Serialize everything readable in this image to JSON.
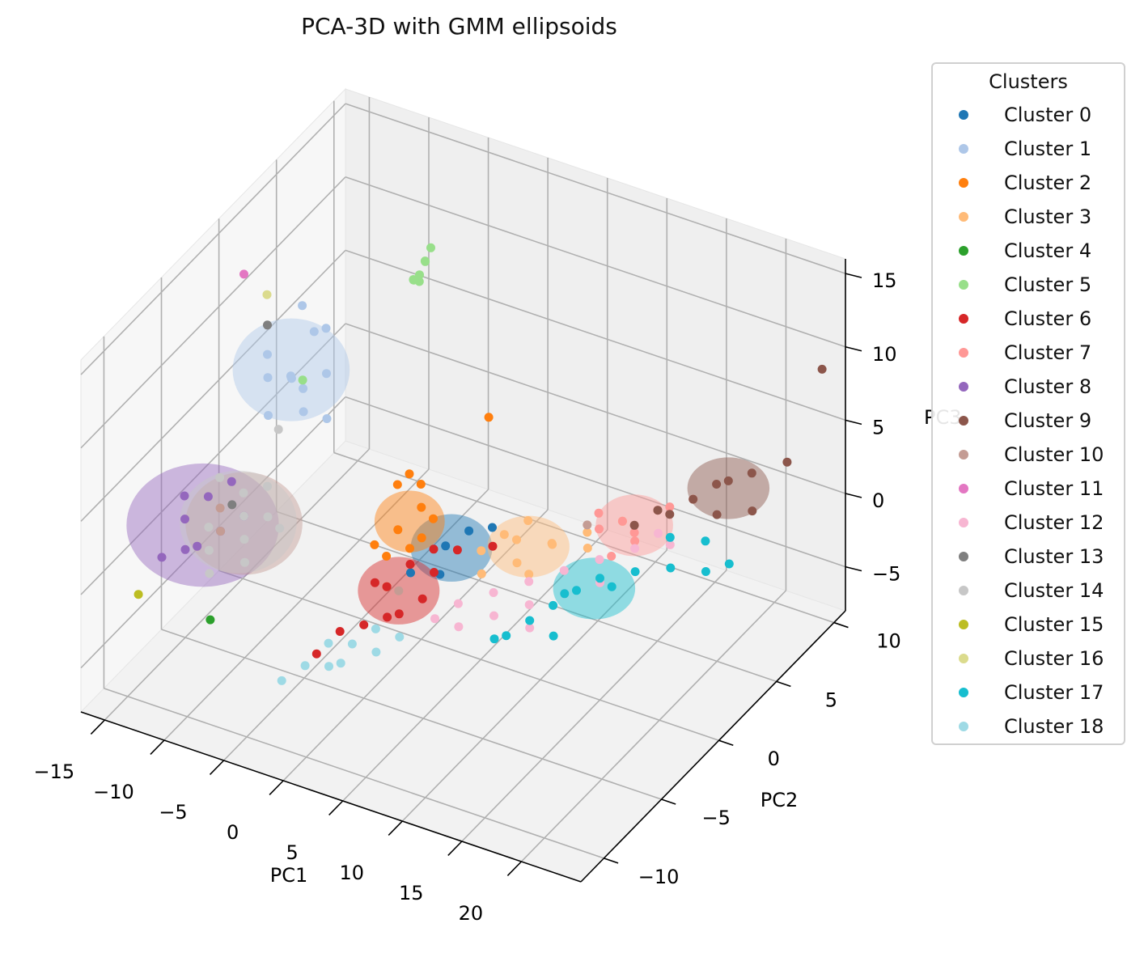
{
  "chart_data": {
    "type": "scatter",
    "projection": "3d",
    "title": "PCA-3D with GMM ellipsoids",
    "xlabel": "PC1",
    "ylabel": "PC2",
    "zlabel": "PC3",
    "xlim": [
      -17,
      25
    ],
    "ylim": [
      -12,
      11
    ],
    "zlim": [
      -8,
      16
    ],
    "xticks": [
      -15,
      -10,
      -5,
      0,
      5,
      10,
      15,
      20
    ],
    "yticks": [
      -10,
      -5,
      0,
      5,
      10
    ],
    "zticks": [
      -5,
      0,
      5,
      10,
      15
    ],
    "xtick_labels": [
      "−15",
      "−10",
      "−5",
      "0",
      "5",
      "10",
      "15",
      "20"
    ],
    "ytick_labels": [
      "−10",
      "−5",
      "0",
      "5",
      "10"
    ],
    "ztick_labels": [
      "−5",
      "0",
      "5",
      "10",
      "15"
    ],
    "grid": true,
    "legend": {
      "title": "Clusters",
      "placement": "outside-right"
    },
    "series": [
      {
        "name": "Cluster 0",
        "color": "#1f77b4",
        "points": [
          [
            3,
            -1,
            0
          ],
          [
            4,
            0,
            0.5
          ],
          [
            2,
            -3,
            -0.5
          ],
          [
            5,
            1,
            0.2
          ],
          [
            3.5,
            -2,
            -1
          ]
        ],
        "ellipsoid": {
          "center": [
            3.5,
            -1,
            0
          ],
          "radii": [
            1.5,
            2,
            1.5
          ]
        }
      },
      {
        "name": "Cluster 1",
        "color": "#aec7e8",
        "points": [
          [
            -9,
            -2,
            9
          ],
          [
            -8,
            -3,
            10
          ],
          [
            -10,
            -1,
            8
          ],
          [
            -9,
            0,
            10.5
          ],
          [
            -8,
            -2,
            8.5
          ],
          [
            -10,
            -3,
            9.5
          ],
          [
            -7,
            -1,
            9
          ],
          [
            -9,
            -4,
            8
          ],
          [
            -11,
            -2,
            10
          ],
          [
            -8,
            0,
            11
          ],
          [
            -6,
            -2,
            7
          ],
          [
            -10,
            0,
            12
          ],
          [
            -7,
            -3,
            8
          ]
        ],
        "ellipsoid": {
          "center": [
            -9,
            -2,
            9.5
          ],
          "radii": [
            2.5,
            2.5,
            2.5
          ]
        }
      },
      {
        "name": "Cluster 2",
        "color": "#ff7f0e",
        "points": [
          [
            -1,
            -1,
            0
          ],
          [
            0,
            0,
            1
          ],
          [
            -2,
            -2,
            -0.5
          ],
          [
            0,
            -1,
            -1
          ],
          [
            1,
            0,
            0.5
          ],
          [
            -1,
            1,
            1.5
          ],
          [
            0,
            -3,
            -2
          ],
          [
            -2,
            0,
            2
          ],
          [
            -1,
            -2,
            -1
          ],
          [
            1,
            -1,
            0
          ],
          [
            -4,
            10,
            -2
          ],
          [
            -1,
            0,
            3
          ]
        ],
        "ellipsoid": {
          "center": [
            -0.5,
            -0.5,
            0.3
          ],
          "radii": [
            1.5,
            1.5,
            1.5
          ]
        }
      },
      {
        "name": "Cluster 3",
        "color": "#ffbb78",
        "points": [
          [
            6,
            -1,
            0.5
          ],
          [
            8,
            0,
            1
          ],
          [
            10,
            1,
            0.5
          ],
          [
            12,
            2,
            1
          ],
          [
            7,
            -2,
            0
          ],
          [
            9,
            -1,
            0.5
          ],
          [
            11,
            0,
            1.5
          ],
          [
            13,
            1,
            1
          ],
          [
            8,
            1,
            1.5
          ],
          [
            10,
            -1,
            0
          ],
          [
            14,
            3,
            1.5
          ],
          [
            6,
            1,
            0
          ]
        ],
        "ellipsoid": {
          "center": [
            9,
            0,
            0.8
          ],
          "radii": [
            2,
            1.5,
            1.5
          ]
        }
      },
      {
        "name": "Cluster 4",
        "color": "#2ca02c",
        "points": [
          [
            -10,
            -8,
            -3
          ]
        ]
      },
      {
        "name": "Cluster 5",
        "color": "#98df8a",
        "points": [
          [
            -5,
            5,
            11
          ],
          [
            -5,
            5.5,
            12
          ],
          [
            -5,
            4.5,
            11.5
          ],
          [
            -4.5,
            5,
            12.5
          ],
          [
            -5.5,
            5,
            11
          ],
          [
            -4.5,
            4.5,
            12
          ],
          [
            -5,
            6,
            12.5
          ],
          [
            -9,
            -1,
            8
          ]
        ]
      },
      {
        "name": "Cluster 6",
        "color": "#d62728",
        "points": [
          [
            0,
            -3,
            -2
          ],
          [
            1,
            -2,
            -1
          ],
          [
            2,
            -4,
            -2.5
          ],
          [
            -1,
            -3,
            -2
          ],
          [
            3,
            -2,
            -1
          ],
          [
            0,
            -5,
            -3
          ],
          [
            -2,
            -5,
            -4
          ],
          [
            2,
            -1,
            -0.5
          ],
          [
            4,
            -1,
            0
          ],
          [
            1,
            -4,
            -3
          ],
          [
            -3,
            -6,
            -5
          ],
          [
            6,
            0,
            0
          ],
          [
            3,
            -3,
            -2
          ]
        ],
        "ellipsoid": {
          "center": [
            1,
            -3,
            -2
          ],
          "radii": [
            1.5,
            2,
            1.5
          ]
        }
      },
      {
        "name": "Cluster 7",
        "color": "#ff9896",
        "points": [
          [
            14,
            3,
            1.5
          ],
          [
            16,
            4,
            2
          ],
          [
            15,
            3,
            1
          ],
          [
            13,
            2,
            1.5
          ],
          [
            17,
            4,
            2.5
          ],
          [
            16,
            2,
            1.5
          ],
          [
            18,
            5,
            2.5
          ],
          [
            15,
            1,
            1
          ],
          [
            12,
            3,
            1.5
          ]
        ],
        "ellipsoid": {
          "center": [
            15,
            3,
            1.5
          ],
          "radii": [
            1.8,
            1.5,
            1.5
          ]
        }
      },
      {
        "name": "Cluster 8",
        "color": "#9467bd",
        "points": [
          [
            -16,
            -4,
            -1
          ],
          [
            -15,
            -3,
            0
          ],
          [
            -14,
            -5,
            -1.5
          ],
          [
            -16,
            -6,
            -2
          ],
          [
            -14,
            -2,
            0.5
          ],
          [
            -13,
            -4,
            -1
          ],
          [
            -15,
            -5,
            -2
          ],
          [
            -17,
            -3,
            -0.5
          ],
          [
            -12,
            -3,
            -0.5
          ]
        ],
        "ellipsoid": {
          "center": [
            -14.5,
            -4,
            -1
          ],
          "radii": [
            3.5,
            3,
            3
          ]
        }
      },
      {
        "name": "Cluster 9",
        "color": "#8c564b",
        "points": [
          [
            16,
            4,
            2
          ],
          [
            18,
            5,
            2.5
          ],
          [
            19,
            6,
            3
          ],
          [
            20,
            6,
            3.5
          ],
          [
            21,
            7,
            3.5
          ],
          [
            17,
            4,
            2
          ],
          [
            23,
            8,
            4
          ],
          [
            24,
            10,
            9
          ],
          [
            22,
            6,
            2
          ],
          [
            15,
            3,
            1.5
          ],
          [
            20,
            5,
            2
          ]
        ],
        "ellipsoid": {
          "center": [
            20,
            6,
            3
          ],
          "radii": [
            2,
            1.5,
            1.5
          ]
        }
      },
      {
        "name": "Cluster 10",
        "color": "#c49c94",
        "points": [
          [
            -14,
            -3,
            -0.5
          ],
          [
            -13,
            -4,
            -1
          ],
          [
            1,
            -3,
            -2
          ],
          [
            12,
            2,
            1.5
          ]
        ],
        "ellipsoid": {
          "center": [
            -12,
            -3,
            -1
          ],
          "radii": [
            2.5,
            2.5,
            2.5
          ]
        }
      },
      {
        "name": "Cluster 11",
        "color": "#e377c2",
        "points": [
          [
            -12,
            -3,
            16
          ]
        ]
      },
      {
        "name": "Cluster 12",
        "color": "#f7b6d2",
        "points": [
          [
            6,
            -3,
            -1.5
          ],
          [
            8,
            -2,
            -1
          ],
          [
            10,
            -1,
            -0.5
          ],
          [
            12,
            0,
            0
          ],
          [
            7,
            -4,
            -2
          ],
          [
            9,
            -3,
            -1.5
          ],
          [
            11,
            -2,
            -1
          ],
          [
            13,
            -1,
            -0.5
          ],
          [
            14,
            1,
            0.5
          ],
          [
            16,
            2,
            1
          ],
          [
            15,
            0,
            0
          ],
          [
            17,
            3,
            1.5
          ],
          [
            5,
            -4,
            -2
          ],
          [
            12,
            -3,
            -1.5
          ],
          [
            18,
            3,
            1
          ]
        ]
      },
      {
        "name": "Cluster 13",
        "color": "#7f7f7f",
        "points": [
          [
            -11,
            -2,
            12
          ],
          [
            -13,
            -3,
            0
          ]
        ]
      },
      {
        "name": "Cluster 14",
        "color": "#c7c7c7",
        "points": [
          [
            -12,
            -3,
            -0.5
          ],
          [
            -11,
            -4,
            -1
          ],
          [
            -13,
            -5,
            -1.5
          ],
          [
            -10,
            -3,
            0
          ],
          [
            -12,
            -6,
            -2
          ],
          [
            -14,
            -4,
            -1
          ],
          [
            -11,
            -2,
            1
          ],
          [
            -13,
            -2,
            0
          ],
          [
            -10,
            -5,
            -1.5
          ],
          [
            -9,
            -3,
            -0.5
          ],
          [
            -12,
            0,
            3
          ],
          [
            -15,
            -2,
            0.5
          ]
        ],
        "ellipsoid": {
          "center": [
            -12,
            -3.5,
            -0.5
          ],
          "radii": [
            2.5,
            2.5,
            2.5
          ]
        }
      },
      {
        "name": "Cluster 15",
        "color": "#bcbd22",
        "points": [
          [
            -17,
            -7,
            -4
          ]
        ]
      },
      {
        "name": "Cluster 16",
        "color": "#dbdb8d",
        "points": [
          [
            -12,
            -1,
            13
          ]
        ]
      },
      {
        "name": "Cluster 17",
        "color": "#17becf",
        "points": [
          [
            12,
            -3,
            -1
          ],
          [
            13,
            -2,
            -0.5
          ],
          [
            14,
            -1,
            0
          ],
          [
            15,
            0,
            0.3
          ],
          [
            11,
            -4,
            -1.5
          ],
          [
            16,
            0,
            0
          ],
          [
            17,
            1,
            0.5
          ],
          [
            19,
            2,
            0.5
          ],
          [
            21,
            3,
            0
          ],
          [
            20,
            4,
            1
          ],
          [
            14,
            -3,
            -1.5
          ],
          [
            10,
            -4,
            -2
          ],
          [
            18,
            3,
            1.5
          ],
          [
            22,
            4,
            0
          ],
          [
            13,
            -1,
            -0.5
          ]
        ],
        "ellipsoid": {
          "center": [
            15,
            -0.5,
            0
          ],
          "radii": [
            2,
            1.5,
            1.5
          ]
        }
      },
      {
        "name": "Cluster 18",
        "color": "#9edae5",
        "points": [
          [
            -2,
            -6,
            -4
          ],
          [
            -1,
            -7,
            -4.5
          ],
          [
            0,
            -6,
            -3.5
          ],
          [
            1,
            -5,
            -3
          ],
          [
            2,
            -6,
            -3.5
          ],
          [
            3,
            -5,
            -3
          ],
          [
            -3,
            -7,
            -5
          ],
          [
            -4,
            -8,
            -5.5
          ],
          [
            0,
            -7,
            -4
          ]
        ]
      }
    ]
  }
}
